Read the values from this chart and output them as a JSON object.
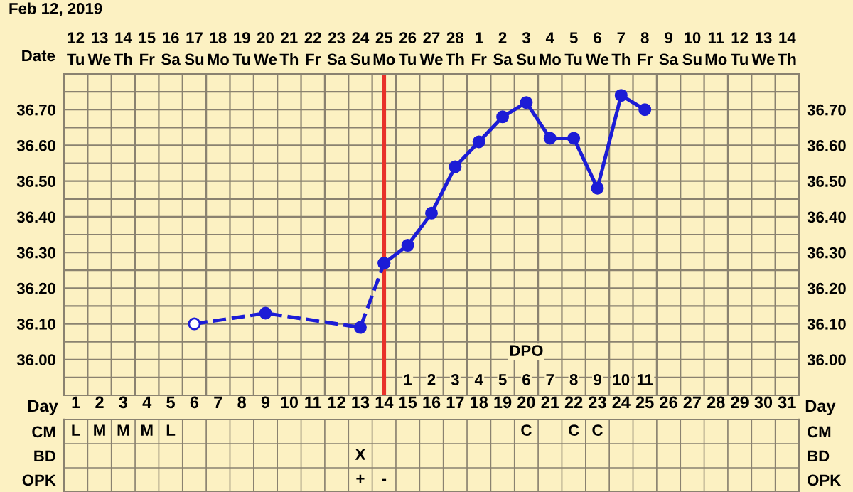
{
  "chart_data": [
    {
      "type": "line",
      "marker": "circle",
      "grid": true,
      "title": "Feb 12, 2019",
      "x2label": "DPO",
      "x2lim": [
        -13.5,
        17.5
      ],
      "x2ticks": [
        1,
        2,
        3,
        4,
        5,
        6,
        7,
        8,
        9,
        10,
        11
      ],
      "ylim": [
        35.9,
        36.8
      ],
      "yticks": [
        {
          "value": 35.9,
          "label": null
        },
        {
          "value": 35.95,
          "label": null
        },
        {
          "value": 36.0,
          "label": "36.00"
        },
        {
          "value": 36.05,
          "label": null
        },
        {
          "value": 36.1,
          "label": "36.10"
        },
        {
          "value": 36.15,
          "label": null
        },
        {
          "value": 36.2,
          "label": "36.20"
        },
        {
          "value": 36.25,
          "label": null
        },
        {
          "value": 36.3,
          "label": "36.30"
        },
        {
          "value": 36.35,
          "label": null
        },
        {
          "value": 36.4,
          "label": "36.40"
        },
        {
          "value": 36.45,
          "label": null
        },
        {
          "value": 36.5,
          "label": "36.50"
        },
        {
          "value": 36.55,
          "label": null
        },
        {
          "value": 36.6,
          "label": "36.60"
        },
        {
          "value": 36.65,
          "label": null
        },
        {
          "value": 36.7,
          "label": "36.70"
        },
        {
          "value": 36.75,
          "label": null
        },
        {
          "value": 36.8,
          "label": null
        }
      ],
      "y2lim": [
        35.9,
        36.8
      ],
      "y2ticks": [
        {
          "value": 35.9,
          "label": null
        },
        {
          "value": 35.95,
          "label": null
        },
        {
          "value": 36.0,
          "label": "36.00"
        },
        {
          "value": 36.05,
          "label": null
        },
        {
          "value": 36.1,
          "label": "36.10"
        },
        {
          "value": 36.15,
          "label": null
        },
        {
          "value": 36.2,
          "label": "36.20"
        },
        {
          "value": 36.25,
          "label": null
        },
        {
          "value": 36.3,
          "label": "36.30"
        },
        {
          "value": 36.35,
          "label": null
        },
        {
          "value": 36.4,
          "label": "36.40"
        },
        {
          "value": 36.45,
          "label": null
        },
        {
          "value": 36.5,
          "label": "36.50"
        },
        {
          "value": 36.55,
          "label": null
        },
        {
          "value": 36.6,
          "label": "36.60"
        },
        {
          "value": 36.65,
          "label": null
        },
        {
          "value": 36.7,
          "label": "36.70"
        },
        {
          "value": 36.75,
          "label": null
        },
        {
          "value": 36.8,
          "label": null
        }
      ],
      "xlabel": "Date",
      "xlim": [
        "2019-02-11T12:00",
        "2019-03-14T12:00"
      ],
      "xticks": [
        {
          "value": "2019-02-12",
          "label": "12\nTu"
        },
        {
          "value": "2019-02-13",
          "label": "13\nWe"
        },
        {
          "value": "2019-02-14",
          "label": "14\nTh"
        },
        {
          "value": "2019-02-15",
          "label": "15\nFr"
        },
        {
          "value": "2019-02-16",
          "label": "16\nSa"
        },
        {
          "value": "2019-02-17",
          "label": "17\nSu"
        },
        {
          "value": "2019-02-18",
          "label": "18\nMo"
        },
        {
          "value": "2019-02-19",
          "label": "19\nTu"
        },
        {
          "value": "2019-02-20",
          "label": "20\nWe"
        },
        {
          "value": "2019-02-21",
          "label": "21\nTh"
        },
        {
          "value": "2019-02-22",
          "label": "22\nFr"
        },
        {
          "value": "2019-02-23",
          "label": "23\nSa"
        },
        {
          "value": "2019-02-24",
          "label": "24\nSu"
        },
        {
          "value": "2019-02-25",
          "label": "25\nMo"
        },
        {
          "value": "2019-02-26",
          "label": "26\nTu"
        },
        {
          "value": "2019-02-27",
          "label": "27\nWe"
        },
        {
          "value": "2019-02-28",
          "label": "28\nTh"
        },
        {
          "value": "2019-03-01",
          "label": "1\nFr"
        },
        {
          "value": "2019-03-02",
          "label": "2\nSa"
        },
        {
          "value": "2019-03-03",
          "label": "3\nSu"
        },
        {
          "value": "2019-03-04",
          "label": "4\nMo"
        },
        {
          "value": "2019-03-05",
          "label": "5\nTu"
        },
        {
          "value": "2019-03-06",
          "label": "6\nWe"
        },
        {
          "value": "2019-03-07",
          "label": "7\nTh"
        },
        {
          "value": "2019-03-08",
          "label": "8\nFr"
        },
        {
          "value": "2019-03-09",
          "label": "9\nSa"
        },
        {
          "value": "2019-03-10",
          "label": "10\nSu"
        },
        {
          "value": "2019-03-11",
          "label": "11\nMo"
        },
        {
          "value": "2019-03-12",
          "label": "12\nTu"
        },
        {
          "value": "2019-03-13",
          "label": "13\nWe"
        },
        {
          "value": "2019-03-14",
          "label": "14\nTh"
        }
      ],
      "series": [
        {
          "x": [
            "2019-02-17",
            "2019-02-20",
            "2019-02-24",
            "2019-02-25"
          ],
          "values": [
            36.1,
            36.13,
            36.09,
            36.27
          ],
          "color": "#1c1cd6",
          "colors": [
            "#ffffff",
            "#1c1cd6",
            "#1c1cd6",
            "#1c1cd6"
          ],
          "line_style": "dashed"
        },
        {
          "x": [
            "2019-02-25",
            "2019-02-26",
            "2019-02-27",
            "2019-02-28",
            "2019-03-01",
            "2019-03-02",
            "2019-03-03",
            "2019-03-04",
            "2019-03-05",
            "2019-03-06",
            "2019-03-07",
            "2019-03-08"
          ],
          "values": [
            36.27,
            36.32,
            36.41,
            36.54,
            36.61,
            36.68,
            36.72,
            36.62,
            36.62,
            36.48,
            36.74,
            36.7
          ],
          "color": "#1c1cd6",
          "line_style": "solid"
        }
      ],
      "ref_lines": [
        {
          "axis": "x",
          "value": "2019-02-25",
          "color": "#e8312a",
          "line_style": "solid"
        }
      ]
    },
    {
      "type": "heatmap",
      "xlabel": "Day",
      "categories": [
        "1",
        "2",
        "3",
        "4",
        "5",
        "6",
        "7",
        "8",
        "9",
        "10",
        "11",
        "12",
        "13",
        "14",
        "15",
        "16",
        "17",
        "18",
        "19",
        "20",
        "21",
        "22",
        "23",
        "24",
        "25",
        "26",
        "27",
        "28",
        "29",
        "30",
        "31"
      ],
      "y_categories": [
        "CM",
        "BD",
        "OPK"
      ],
      "y2_categories": [
        "CM",
        "BD",
        "OPK"
      ],
      "cells": [
        [
          null,
          null,
          null,
          null,
          null,
          null,
          null,
          null,
          null,
          null,
          null,
          null,
          null,
          null,
          null,
          null,
          null,
          null,
          null,
          null,
          null,
          null,
          null,
          null,
          null,
          null,
          null,
          null,
          null,
          null,
          null
        ],
        [
          null,
          null,
          null,
          null,
          null,
          null,
          null,
          null,
          null,
          null,
          null,
          null,
          null,
          null,
          null,
          null,
          null,
          null,
          null,
          null,
          null,
          null,
          null,
          null,
          null,
          null,
          null,
          null,
          null,
          null,
          null
        ],
        [
          null,
          null,
          null,
          null,
          null,
          null,
          null,
          null,
          null,
          null,
          null,
          null,
          null,
          null,
          null,
          null,
          null,
          null,
          null,
          null,
          null,
          null,
          null,
          null,
          null,
          null,
          null,
          null,
          null,
          null,
          null
        ]
      ],
      "cell_labels": [
        [
          "L",
          "M",
          "M",
          "M",
          "L",
          null,
          null,
          null,
          null,
          null,
          null,
          null,
          null,
          null,
          null,
          null,
          null,
          null,
          null,
          "C",
          null,
          "C",
          "C",
          null,
          null,
          null,
          null,
          null,
          null,
          null,
          null
        ],
        [
          null,
          null,
          null,
          null,
          null,
          null,
          null,
          null,
          null,
          null,
          null,
          null,
          "X",
          null,
          null,
          null,
          null,
          null,
          null,
          null,
          null,
          null,
          null,
          null,
          null,
          null,
          null,
          null,
          null,
          null,
          null
        ],
        [
          null,
          null,
          null,
          null,
          null,
          null,
          null,
          null,
          null,
          null,
          null,
          null,
          "+",
          "-",
          null,
          null,
          null,
          null,
          null,
          null,
          null,
          null,
          null,
          null,
          null,
          null,
          null,
          null,
          null,
          null,
          null
        ]
      ]
    }
  ]
}
